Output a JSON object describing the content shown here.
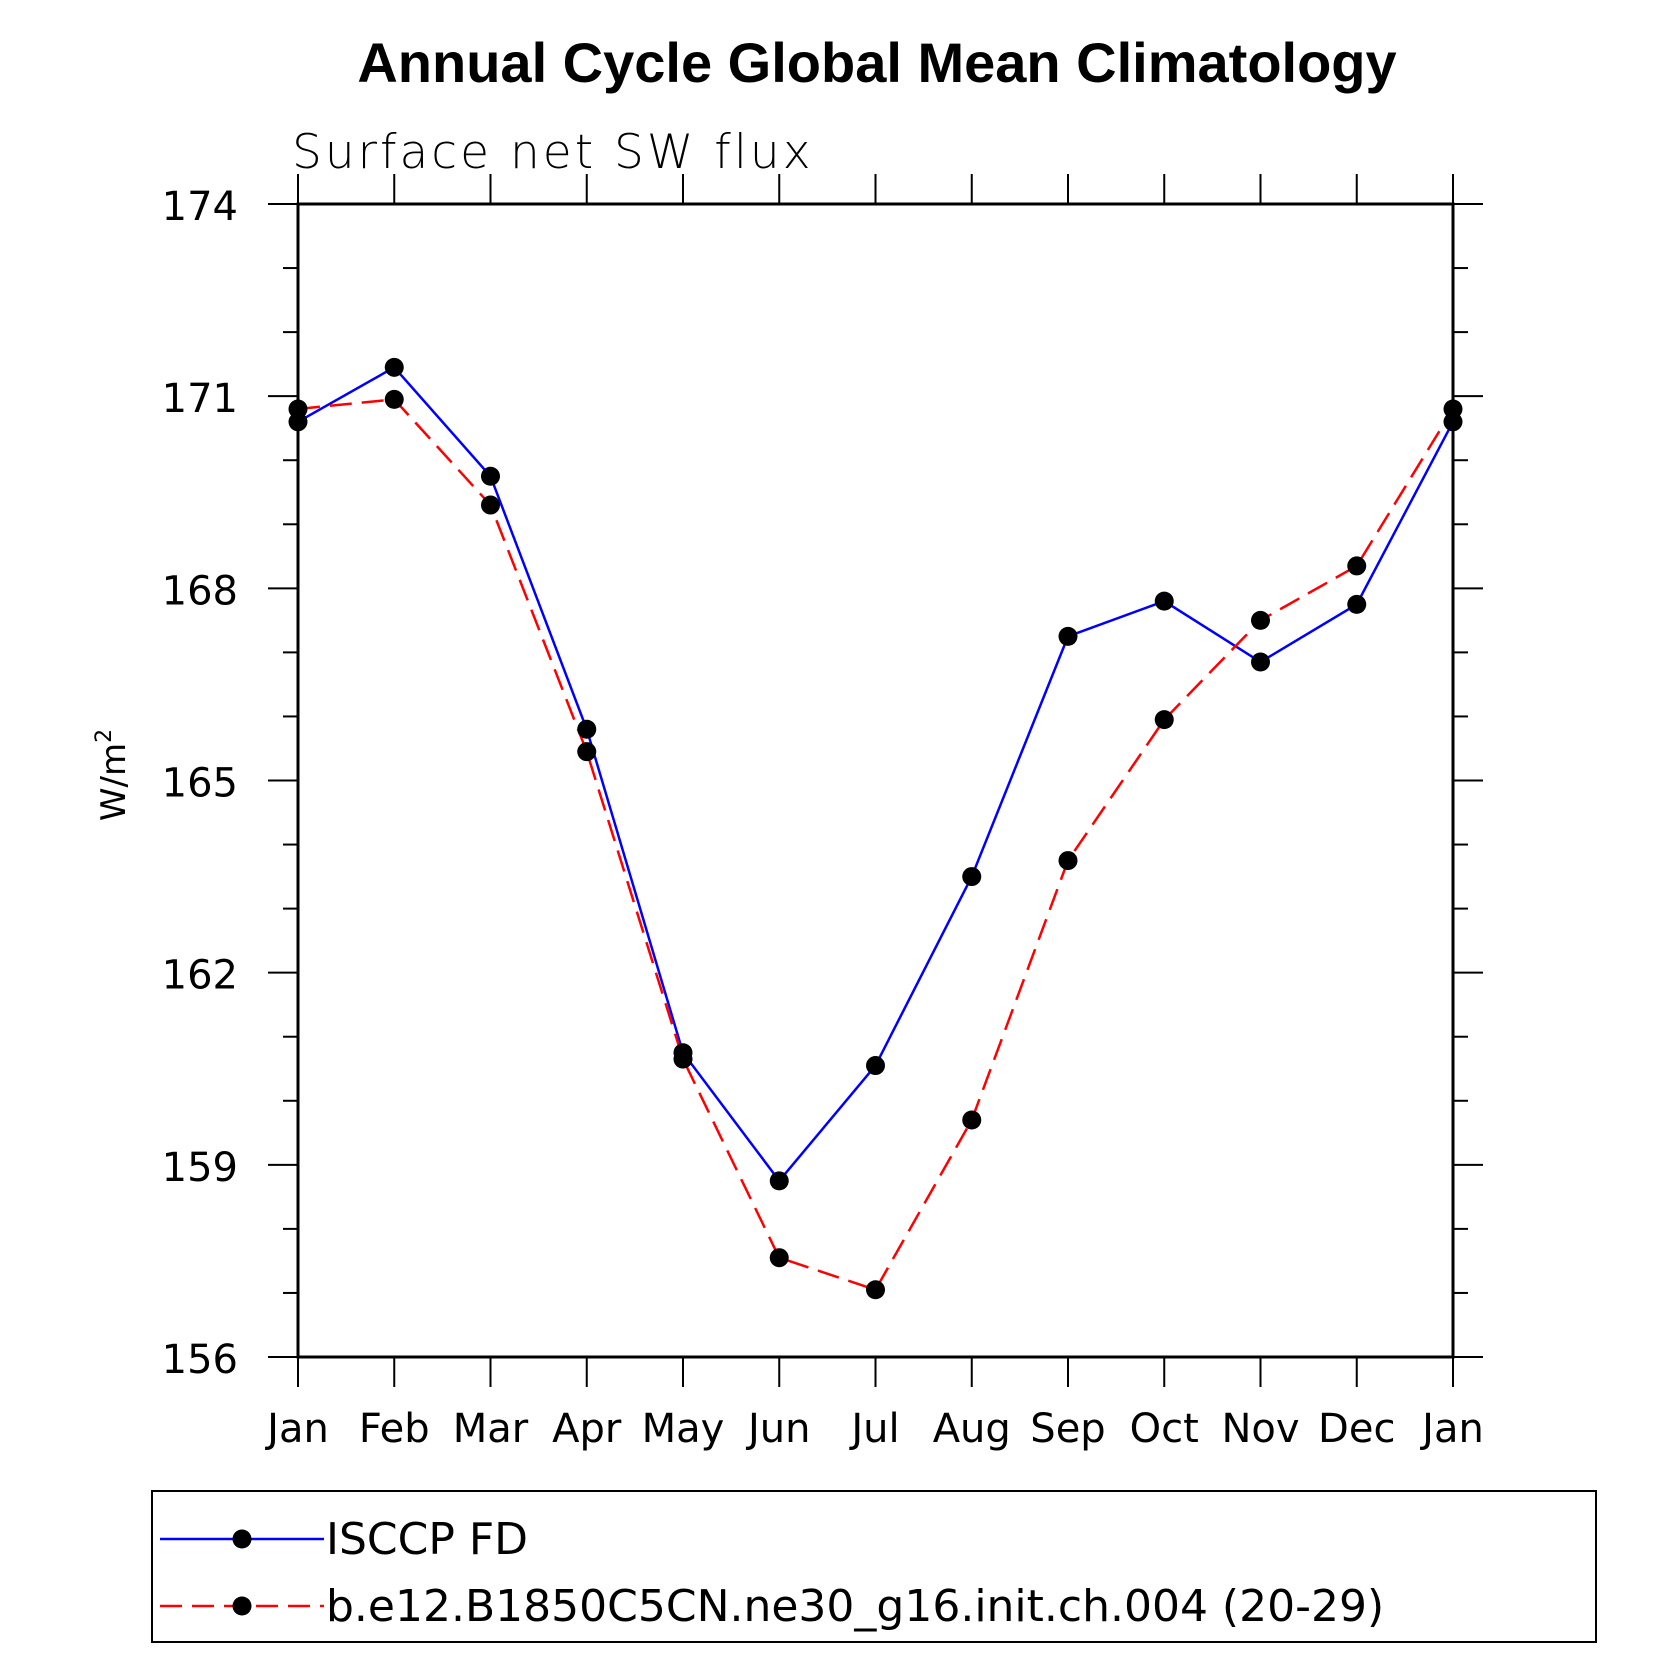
{
  "chart_data": {
    "type": "line",
    "title": "Annual Cycle Global Mean Climatology",
    "subtitle": "Surface net SW flux",
    "xlabel": "",
    "ylabel": "W/m",
    "ylabel_superscript": "2",
    "categories": [
      "Jan",
      "Feb",
      "Mar",
      "Apr",
      "May",
      "Jun",
      "Jul",
      "Aug",
      "Sep",
      "Oct",
      "Nov",
      "Dec",
      "Jan"
    ],
    "ylim": [
      156,
      174
    ],
    "yticks": [
      "156",
      "159",
      "162",
      "165",
      "168",
      "171",
      "174"
    ],
    "series": [
      {
        "name": "ISCCP FD",
        "color": "#0000ff",
        "style": "solid",
        "values": [
          170.6,
          171.45,
          169.75,
          165.8,
          160.75,
          158.75,
          160.55,
          163.5,
          167.25,
          167.8,
          166.85,
          167.75,
          170.6
        ]
      },
      {
        "name": "b.e12.B1850C5CN.ne30_g16.init.ch.004 (20-29)",
        "color": "#ff0000",
        "style": "dashed",
        "values": [
          170.8,
          170.95,
          169.3,
          165.45,
          160.65,
          157.55,
          157.05,
          159.7,
          163.75,
          165.95,
          167.5,
          168.35,
          170.8
        ]
      }
    ],
    "grid": false,
    "legend_position": "bottom"
  }
}
